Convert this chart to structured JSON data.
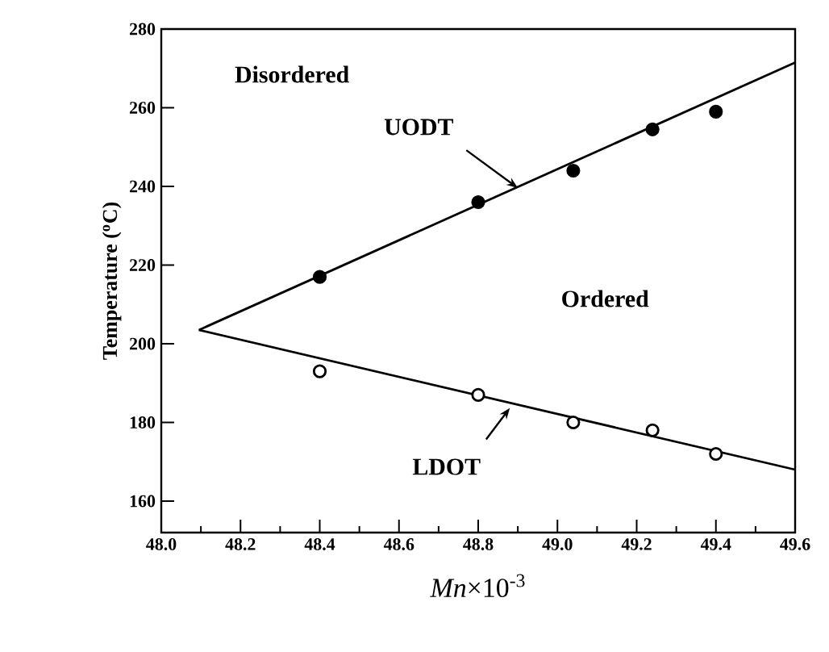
{
  "chart_data": {
    "type": "scatter",
    "xlabel": "*Mn*×10$^{-3}$",
    "ylabel": "Temperature ($^{o}$C)",
    "xlim": [
      48.0,
      49.6
    ],
    "xticks": [
      {
        "value": 48.0,
        "label": "48.0"
      },
      48.2,
      48.4,
      48.6,
      48.8,
      {
        "value": 49.0,
        "label": "49.0"
      },
      49.2,
      49.4,
      49.6
    ],
    "ylim": [
      152,
      280
    ],
    "yticks": [
      160,
      180,
      200,
      220,
      240,
      260,
      280
    ],
    "grid": false,
    "series": [
      {
        "marker": "circle",
        "color": "#000000",
        "x": [
          48.4,
          48.8,
          49.04,
          49.24,
          49.4
        ],
        "values": [
          217,
          236,
          244,
          254.5,
          259
        ]
      },
      {
        "marker": "circle",
        "color": "#000000",
        "x": [
          48.4,
          48.8,
          49.04,
          49.24,
          49.4
        ],
        "values": [
          193,
          187,
          180,
          178,
          172
        ]
      },
      {
        "type": "line",
        "marker": "none",
        "line_style": "solid",
        "color": "#000000",
        "x": [
          48.095,
          49.6
        ],
        "values": [
          203.5,
          271.5
        ]
      },
      {
        "type": "line",
        "marker": "none",
        "line_style": "solid",
        "color": "#000000",
        "x": [
          48.095,
          49.6
        ],
        "values": [
          203.5,
          168
        ]
      }
    ],
    "annotations": [
      "Disordered",
      {
        "text": "UODT",
        "x": 48.9,
        "y": 239.6
      },
      "Ordered",
      {
        "text": "LDOT",
        "x": 48.88,
        "y": 183.7
      }
    ]
  }
}
